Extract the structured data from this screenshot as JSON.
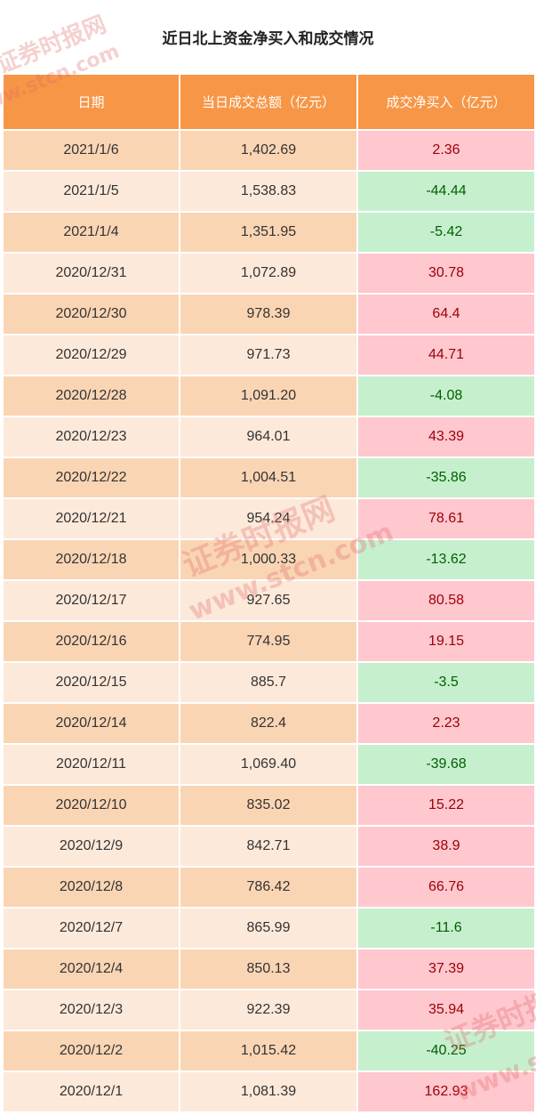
{
  "title": "近日北上资金净买入和成交情况",
  "headers": [
    "日期",
    "当日成交总额（亿元）",
    "成交净买入（亿元）"
  ],
  "rows": [
    {
      "date": "2021/1/6",
      "total": "1,402.69",
      "net": "2.36"
    },
    {
      "date": "2021/1/5",
      "total": "1,538.83",
      "net": "-44.44"
    },
    {
      "date": "2021/1/4",
      "total": "1,351.95",
      "net": "-5.42"
    },
    {
      "date": "2020/12/31",
      "total": "1,072.89",
      "net": "30.78"
    },
    {
      "date": "2020/12/30",
      "total": "978.39",
      "net": "64.4"
    },
    {
      "date": "2020/12/29",
      "total": "971.73",
      "net": "44.71"
    },
    {
      "date": "2020/12/28",
      "total": "1,091.20",
      "net": "-4.08"
    },
    {
      "date": "2020/12/23",
      "total": "964.01",
      "net": "43.39"
    },
    {
      "date": "2020/12/22",
      "total": "1,004.51",
      "net": "-35.86"
    },
    {
      "date": "2020/12/21",
      "total": "954.24",
      "net": "78.61"
    },
    {
      "date": "2020/12/18",
      "total": "1,000.33",
      "net": "-13.62"
    },
    {
      "date": "2020/12/17",
      "total": "927.65",
      "net": "80.58"
    },
    {
      "date": "2020/12/16",
      "total": "774.95",
      "net": "19.15"
    },
    {
      "date": "2020/12/15",
      "total": "885.7",
      "net": "-3.5"
    },
    {
      "date": "2020/12/14",
      "total": "822.4",
      "net": "2.23"
    },
    {
      "date": "2020/12/11",
      "total": "1,069.40",
      "net": "-39.68"
    },
    {
      "date": "2020/12/10",
      "total": "835.02",
      "net": "15.22"
    },
    {
      "date": "2020/12/9",
      "total": "842.71",
      "net": "38.9"
    },
    {
      "date": "2020/12/8",
      "total": "786.42",
      "net": "66.76"
    },
    {
      "date": "2020/12/7",
      "total": "865.99",
      "net": "-11.6"
    },
    {
      "date": "2020/12/4",
      "total": "850.13",
      "net": "37.39"
    },
    {
      "date": "2020/12/3",
      "total": "922.39",
      "net": "35.94"
    },
    {
      "date": "2020/12/2",
      "total": "1,015.42",
      "net": "-40.25"
    },
    {
      "date": "2020/12/1",
      "total": "1,081.39",
      "net": "162.93"
    }
  ],
  "watermark": {
    "cn": "证券时报网",
    "url": "www.stcn.com"
  },
  "colors": {
    "header_bg": "#f79646",
    "row_odd": "#fad5b4",
    "row_even": "#fde9da",
    "positive_bg": "#ffc7ce",
    "positive_text": "#9c0006",
    "negative_bg": "#c6efce",
    "negative_text": "#006100"
  }
}
